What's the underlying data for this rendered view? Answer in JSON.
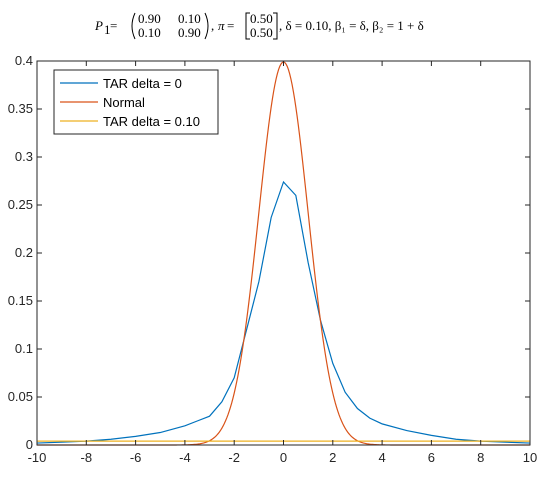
{
  "title_formula": {
    "p_symbol": "P",
    "p_sub": "1",
    "equals": " = ",
    "matrix_P": [
      [
        "0.90",
        "0.10"
      ],
      [
        "0.10",
        "0.90"
      ]
    ],
    "sep1": ", ",
    "pi_symbol": "π",
    "vector_pi": [
      "0.50",
      "0.50"
    ],
    "rest": ", δ = 0.10, β₁ = δ, β₂ = 1 + δ"
  },
  "chart_data": {
    "type": "line",
    "xlim": [
      -10,
      10
    ],
    "ylim": [
      0,
      0.4
    ],
    "x_ticks": [
      "-10",
      "-8",
      "-6",
      "-4",
      "-2",
      "0",
      "2",
      "4",
      "6",
      "8",
      "10"
    ],
    "y_ticks": [
      "0",
      "0.05",
      "0.1",
      "0.15",
      "0.2",
      "0.25",
      "0.3",
      "0.35",
      "0.4"
    ],
    "grid": false,
    "legend_position": "top-left",
    "series": [
      {
        "name": "TAR delta = 0",
        "color": "#0072BD",
        "x": [
          -10,
          -9,
          -8,
          -7,
          -6,
          -5,
          -4,
          -3.5,
          -3,
          -2.5,
          -2,
          -1.5,
          -1,
          -0.5,
          0,
          0.5,
          1,
          1.5,
          2,
          2.5,
          3,
          3.5,
          4,
          5,
          6,
          7,
          8,
          9,
          10
        ],
        "y": [
          0.002,
          0.003,
          0.004,
          0.006,
          0.009,
          0.013,
          0.02,
          0.025,
          0.03,
          0.045,
          0.07,
          0.12,
          0.17,
          0.237,
          0.274,
          0.26,
          0.19,
          0.13,
          0.085,
          0.055,
          0.038,
          0.028,
          0.022,
          0.015,
          0.01,
          0.006,
          0.004,
          0.003,
          0.002
        ]
      },
      {
        "name": "Normal",
        "color": "#D95319",
        "distribution": "normal",
        "mean": 0,
        "std": 1,
        "x_range": [
          -10,
          10
        ]
      },
      {
        "name": "TAR delta = 0.10",
        "color": "#EDB120",
        "x": [
          -10,
          -8,
          -6,
          -4,
          -2,
          0,
          2,
          4,
          6,
          8,
          10
        ],
        "y": [
          0.004,
          0.004,
          0.004,
          0.004,
          0.004,
          0.004,
          0.004,
          0.004,
          0.004,
          0.004,
          0.004
        ]
      }
    ]
  }
}
